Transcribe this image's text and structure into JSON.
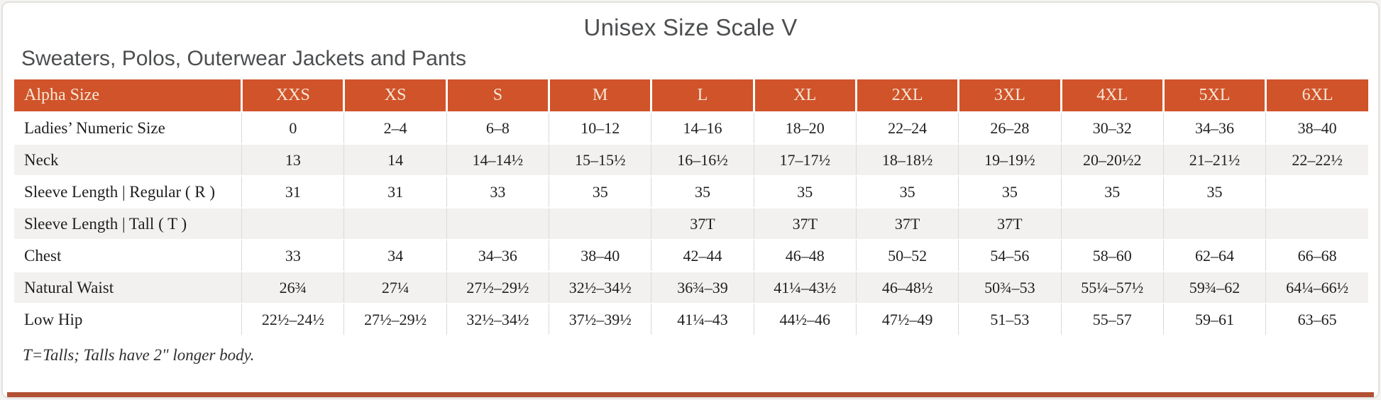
{
  "page": {
    "title": "Unisex Size Scale V",
    "subtitle": "Sweaters, Polos, Outerwear Jackets and Pants",
    "footnote": "T=Talls; Talls have 2\" longer body."
  },
  "colors": {
    "header_bg": "#d0532a",
    "header_text": "#f6e8d7",
    "row_alt_bg": "#f2f1ef",
    "body_text": "#1f1f1f",
    "heading_text": "#4c4e50",
    "next_section_strip": "#b25034"
  },
  "chart_data": {
    "type": "table",
    "columns": [
      "Alpha Size",
      "XXS",
      "XS",
      "S",
      "M",
      "L",
      "XL",
      "2XL",
      "3XL",
      "4XL",
      "5XL",
      "6XL"
    ],
    "rows": [
      {
        "label": "Ladies’ Numeric Size",
        "values": [
          "0",
          "2–4",
          "6–8",
          "10–12",
          "14–16",
          "18–20",
          "22–24",
          "26–28",
          "30–32",
          "34–36",
          "38–40"
        ]
      },
      {
        "label": "Neck",
        "values": [
          "13",
          "14",
          "14–14½",
          "15–15½",
          "16–16½",
          "17–17½",
          "18–18½",
          "19–19½",
          "20–20½2",
          "21–21½",
          "22–22½"
        ]
      },
      {
        "label": "Sleeve Length | Regular ( R )",
        "values": [
          "31",
          "31",
          "33",
          "35",
          "35",
          "35",
          "35",
          "35",
          "35",
          "35",
          ""
        ]
      },
      {
        "label": "Sleeve Length | Tall ( T )",
        "values": [
          "",
          "",
          "",
          "",
          "37T",
          "37T",
          "37T",
          "37T",
          "",
          "",
          ""
        ]
      },
      {
        "label": "Chest",
        "values": [
          "33",
          "34",
          "34–36",
          "38–40",
          "42–44",
          "46–48",
          "50–52",
          "54–56",
          "58–60",
          "62–64",
          "66–68"
        ]
      },
      {
        "label": "Natural Waist",
        "values": [
          "26¾",
          "27¼",
          "27½–29½",
          "32½–34½",
          "36¾–39",
          "41¼–43½",
          "46–48½",
          "50¾–53",
          "55¼–57½",
          "59¾–62",
          "64¼–66½"
        ]
      },
      {
        "label": "Low Hip",
        "values": [
          "22½–24½",
          "27½–29½",
          "32½–34½",
          "37½–39½",
          "41¼–43",
          "44½–46",
          "47½–49",
          "51–53",
          "55–57",
          "59–61",
          "63–65"
        ]
      }
    ]
  }
}
